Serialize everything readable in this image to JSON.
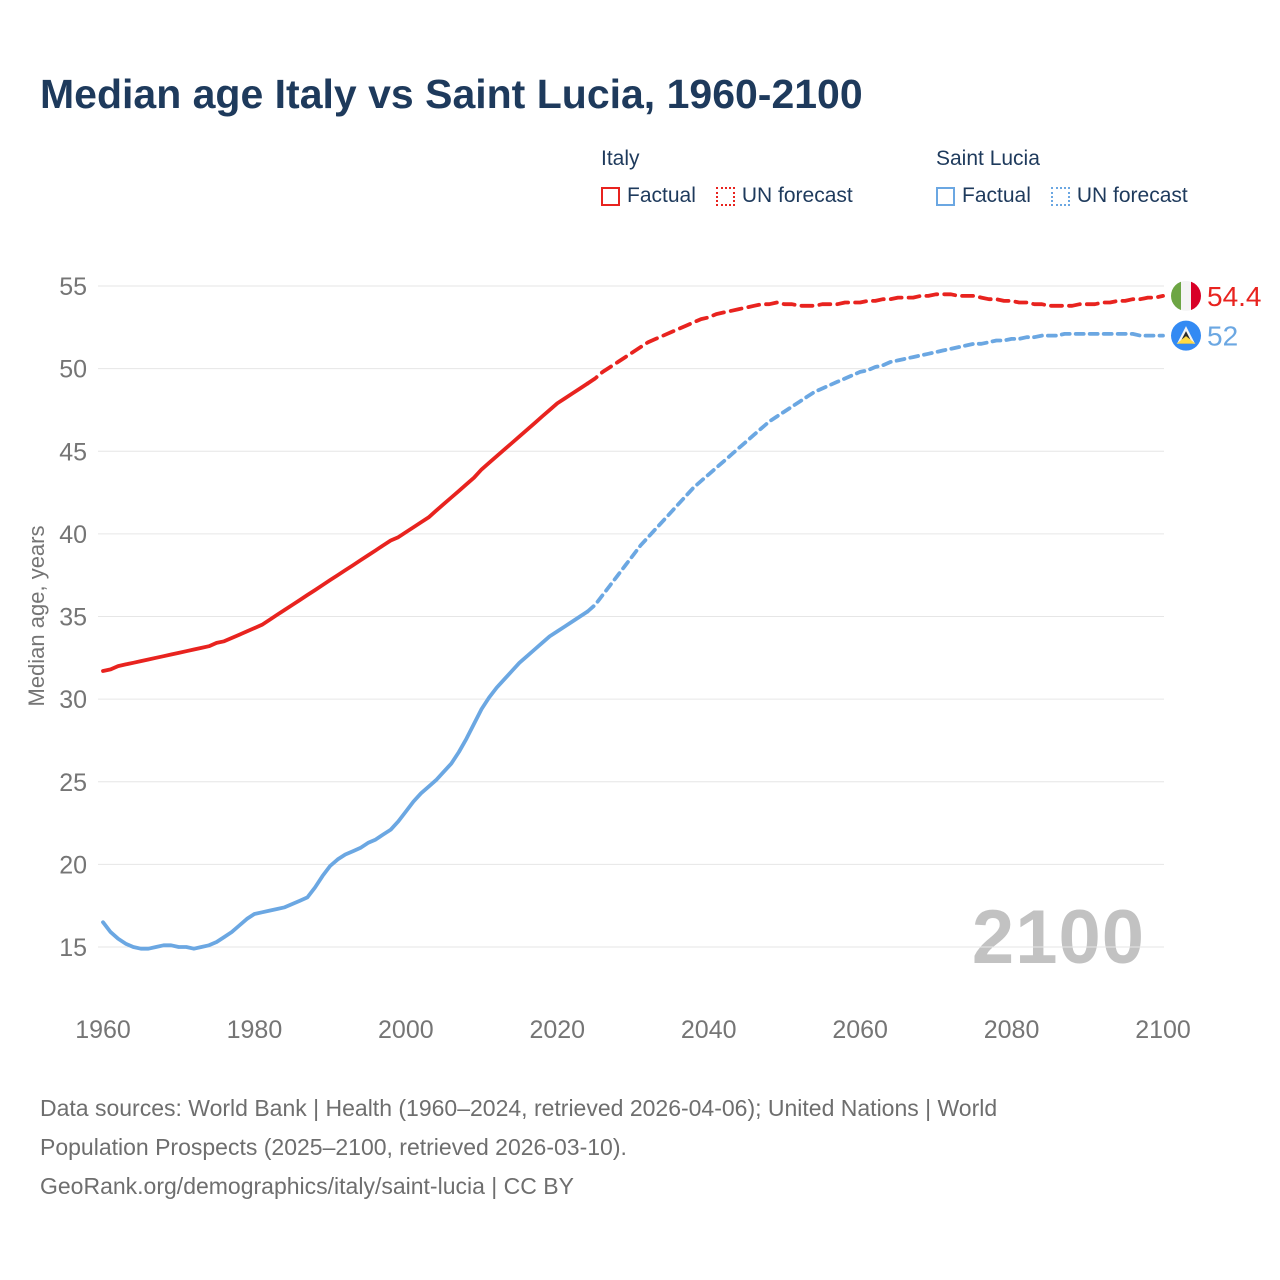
{
  "header": {
    "title": "Median age Italy vs Saint Lucia, 1960-2100"
  },
  "legend": {
    "groups": [
      {
        "label": "Italy",
        "color": "#e8231f",
        "items": [
          {
            "label": "Factual",
            "style": "solid"
          },
          {
            "label": "UN forecast",
            "style": "dashed"
          }
        ]
      },
      {
        "label": "Saint Lucia",
        "color": "#6ba7e2",
        "items": [
          {
            "label": "Factual",
            "style": "solid"
          },
          {
            "label": "UN forecast",
            "style": "dashed"
          }
        ]
      }
    ]
  },
  "chart_data": {
    "type": "line",
    "title": "Median age Italy vs Saint Lucia, 1960-2100",
    "xlabel": "",
    "ylabel": "Median age, years",
    "x_range": [
      1960,
      2100
    ],
    "y_range": [
      15,
      55
    ],
    "x_ticks": [
      1960,
      1980,
      2000,
      2020,
      2040,
      2060,
      2080,
      2100
    ],
    "y_ticks": [
      15,
      20,
      25,
      30,
      35,
      40,
      45,
      50,
      55
    ],
    "grid": "horizontal",
    "legend_position": "top",
    "watermark": "2100",
    "series": [
      {
        "id": "italy-factual",
        "name": "Italy",
        "kind": "Factual",
        "line": "solid",
        "color": "#e8231f",
        "x_start": 1960,
        "x_end": 2024,
        "step": 1,
        "values": [
          31.7,
          31.8,
          32.0,
          32.1,
          32.2,
          32.3,
          32.4,
          32.5,
          32.6,
          32.7,
          32.8,
          32.9,
          33.0,
          33.1,
          33.2,
          33.4,
          33.5,
          33.7,
          33.9,
          34.1,
          34.3,
          34.5,
          34.8,
          35.1,
          35.4,
          35.7,
          36.0,
          36.3,
          36.6,
          36.9,
          37.2,
          37.5,
          37.8,
          38.1,
          38.4,
          38.7,
          39.0,
          39.3,
          39.6,
          39.8,
          40.1,
          40.4,
          40.7,
          41.0,
          41.4,
          41.8,
          42.2,
          42.6,
          43.0,
          43.4,
          43.9,
          44.3,
          44.7,
          45.1,
          45.5,
          45.9,
          46.3,
          46.7,
          47.1,
          47.5,
          47.9,
          48.2,
          48.5,
          48.8,
          49.1
        ]
      },
      {
        "id": "italy-forecast",
        "name": "Italy",
        "kind": "UN forecast",
        "line": "dashed",
        "dash": "11 7",
        "color": "#e8231f",
        "x_start": 2024,
        "x_end": 2100,
        "step": 1,
        "values": [
          49.1,
          49.4,
          49.8,
          50.1,
          50.4,
          50.7,
          51.0,
          51.3,
          51.6,
          51.8,
          52.0,
          52.2,
          52.4,
          52.6,
          52.8,
          53.0,
          53.1,
          53.3,
          53.4,
          53.5,
          53.6,
          53.7,
          53.8,
          53.9,
          53.9,
          54.0,
          53.9,
          53.9,
          53.8,
          53.8,
          53.8,
          53.9,
          53.9,
          53.9,
          54.0,
          54.0,
          54.0,
          54.1,
          54.1,
          54.2,
          54.2,
          54.3,
          54.3,
          54.3,
          54.4,
          54.4,
          54.5,
          54.5,
          54.5,
          54.4,
          54.4,
          54.4,
          54.3,
          54.2,
          54.2,
          54.1,
          54.1,
          54.0,
          54.0,
          53.9,
          53.9,
          53.8,
          53.8,
          53.8,
          53.8,
          53.9,
          53.9,
          53.9,
          54.0,
          54.0,
          54.1,
          54.1,
          54.2,
          54.2,
          54.3,
          54.3,
          54.4
        ]
      },
      {
        "id": "saint-lucia-factual",
        "name": "Saint Lucia",
        "kind": "Factual",
        "line": "solid",
        "color": "#6ba7e2",
        "x_start": 1960,
        "x_end": 2024,
        "step": 1,
        "values": [
          16.5,
          15.9,
          15.5,
          15.2,
          15.0,
          14.9,
          14.9,
          15.0,
          15.1,
          15.1,
          15.0,
          15.0,
          14.9,
          15.0,
          15.1,
          15.3,
          15.6,
          15.9,
          16.3,
          16.7,
          17.0,
          17.1,
          17.2,
          17.3,
          17.4,
          17.6,
          17.8,
          18.0,
          18.6,
          19.3,
          19.9,
          20.3,
          20.6,
          20.8,
          21.0,
          21.3,
          21.5,
          21.8,
          22.1,
          22.6,
          23.2,
          23.8,
          24.3,
          24.7,
          25.1,
          25.6,
          26.1,
          26.8,
          27.6,
          28.5,
          29.4,
          30.1,
          30.7,
          31.2,
          31.7,
          32.2,
          32.6,
          33.0,
          33.4,
          33.8,
          34.1,
          34.4,
          34.7,
          35.0,
          35.3
        ]
      },
      {
        "id": "saint-lucia-forecast",
        "name": "Saint Lucia",
        "kind": "UN forecast",
        "line": "dashed",
        "dash": "8 6",
        "color": "#6ba7e2",
        "x_start": 2024,
        "x_end": 2100,
        "step": 1,
        "values": [
          35.3,
          35.7,
          36.3,
          36.9,
          37.5,
          38.1,
          38.7,
          39.3,
          39.8,
          40.3,
          40.8,
          41.3,
          41.8,
          42.3,
          42.8,
          43.2,
          43.6,
          44.0,
          44.4,
          44.8,
          45.2,
          45.6,
          46.0,
          46.4,
          46.8,
          47.1,
          47.4,
          47.7,
          48.0,
          48.3,
          48.6,
          48.8,
          49.0,
          49.2,
          49.4,
          49.6,
          49.8,
          49.9,
          50.1,
          50.2,
          50.4,
          50.5,
          50.6,
          50.7,
          50.8,
          50.9,
          51.0,
          51.1,
          51.2,
          51.3,
          51.4,
          51.5,
          51.5,
          51.6,
          51.7,
          51.7,
          51.8,
          51.8,
          51.9,
          51.9,
          52.0,
          52.0,
          52.0,
          52.1,
          52.1,
          52.1,
          52.1,
          52.1,
          52.1,
          52.1,
          52.1,
          52.1,
          52.1,
          52.0,
          52.0,
          52.0,
          52.0
        ]
      }
    ],
    "end_labels": [
      {
        "id": "italy",
        "series": "Italy",
        "label": "54.4",
        "value": 54.4,
        "flag": "italy",
        "color": "#e8231f"
      },
      {
        "id": "saint-lucia",
        "series": "Saint Lucia",
        "label": "52",
        "value": 52,
        "flag": "saint-lucia",
        "color": "#6ba7e2"
      }
    ]
  },
  "footer": {
    "lines": [
      "Data sources: World Bank | Health (1960–2024, retrieved 2026-04-06); United Nations | World",
      "Population Prospects (2025–2100, retrieved 2026-03-10).",
      "GeoRank.org/demographics/italy/saint-lucia | CC BY"
    ]
  }
}
